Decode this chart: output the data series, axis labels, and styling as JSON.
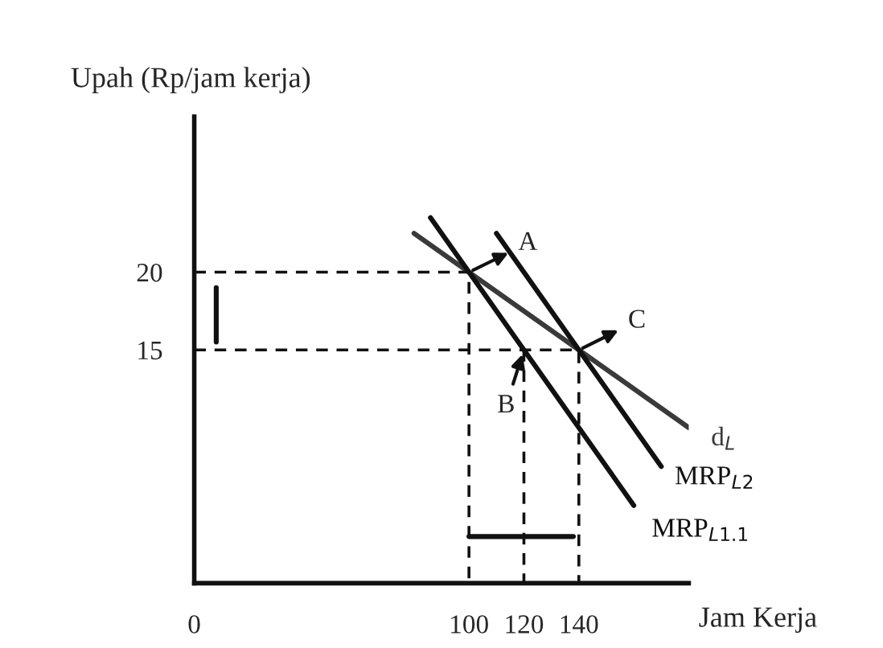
{
  "chart_data": {
    "type": "line",
    "xlabel": "Jam Kerja",
    "ylabel": "Upah (Rp/jam kerja)",
    "xlim": [
      0,
      180
    ],
    "ylim": [
      0,
      30
    ],
    "xticks": [
      0,
      100,
      120,
      140
    ],
    "yticks": [
      15,
      20
    ],
    "grid": false,
    "legend": false,
    "marker": "none",
    "series": [
      {
        "name": "d$_{L}$",
        "color": "#3a3a3a",
        "x": [
          80,
          180
        ],
        "values": [
          22.5,
          10
        ]
      },
      {
        "name": "MRP$_{L2}$",
        "color": "#111111",
        "x": [
          110,
          170
        ],
        "values": [
          22.5,
          7.5
        ]
      },
      {
        "name": "MRP$_{L1.1}$",
        "color": "#111111",
        "x": [
          86,
          160
        ],
        "values": [
          23.5,
          5
        ]
      },
      {
        "color": "#111111",
        "line_style": "dashed",
        "x": [
          0,
          100,
          100
        ],
        "values": [
          20,
          20,
          0
        ]
      },
      {
        "color": "#111111",
        "line_style": "dashed",
        "x": [
          0,
          140,
          140
        ],
        "values": [
          15,
          15,
          0
        ]
      },
      {
        "color": "#111111",
        "line_style": "dashed",
        "x": [
          120,
          120
        ],
        "values": [
          15,
          0
        ]
      },
      {
        "color": "#111111",
        "x": [
          8,
          8
        ],
        "values": [
          19,
          15.5
        ]
      },
      {
        "color": "#111111",
        "x": [
          100,
          138
        ],
        "values": [
          3,
          3
        ]
      }
    ],
    "annotations": [
      {
        "text": "A",
        "x": 100,
        "y": 20
      },
      {
        "text": "B",
        "x": 120,
        "y": 15
      },
      {
        "text": "C",
        "x": 140,
        "y": 15
      }
    ]
  }
}
